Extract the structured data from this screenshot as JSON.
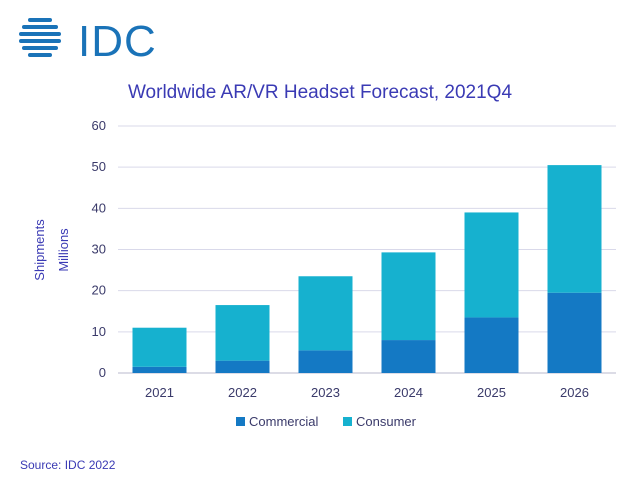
{
  "logo": {
    "text": "IDC"
  },
  "source": "Source: IDC 2022",
  "colors": {
    "commercial": "#1479c4",
    "consumer": "#16b1cf",
    "grid": "#d9d9ea",
    "title": "#3a3ab4",
    "logo": "#1a73b8"
  },
  "chart_data": {
    "type": "bar",
    "stacked": true,
    "title": "Worldwide AR/VR Headset Forecast, 2021Q4",
    "ylabel_line1": "Shipments",
    "ylabel_line2": "Millions",
    "xlabel": "",
    "ylim": [
      0,
      60
    ],
    "yticks": [
      0,
      10,
      20,
      30,
      40,
      50,
      60
    ],
    "grid": true,
    "legend_position": "bottom",
    "categories": [
      "2021",
      "2022",
      "2023",
      "2024",
      "2025",
      "2026"
    ],
    "series": [
      {
        "name": "Commercial",
        "values": [
          1.5,
          3.0,
          5.5,
          8.0,
          13.5,
          19.5
        ]
      },
      {
        "name": "Consumer",
        "values": [
          9.5,
          13.5,
          18.0,
          21.3,
          25.5,
          31.0
        ]
      }
    ]
  }
}
